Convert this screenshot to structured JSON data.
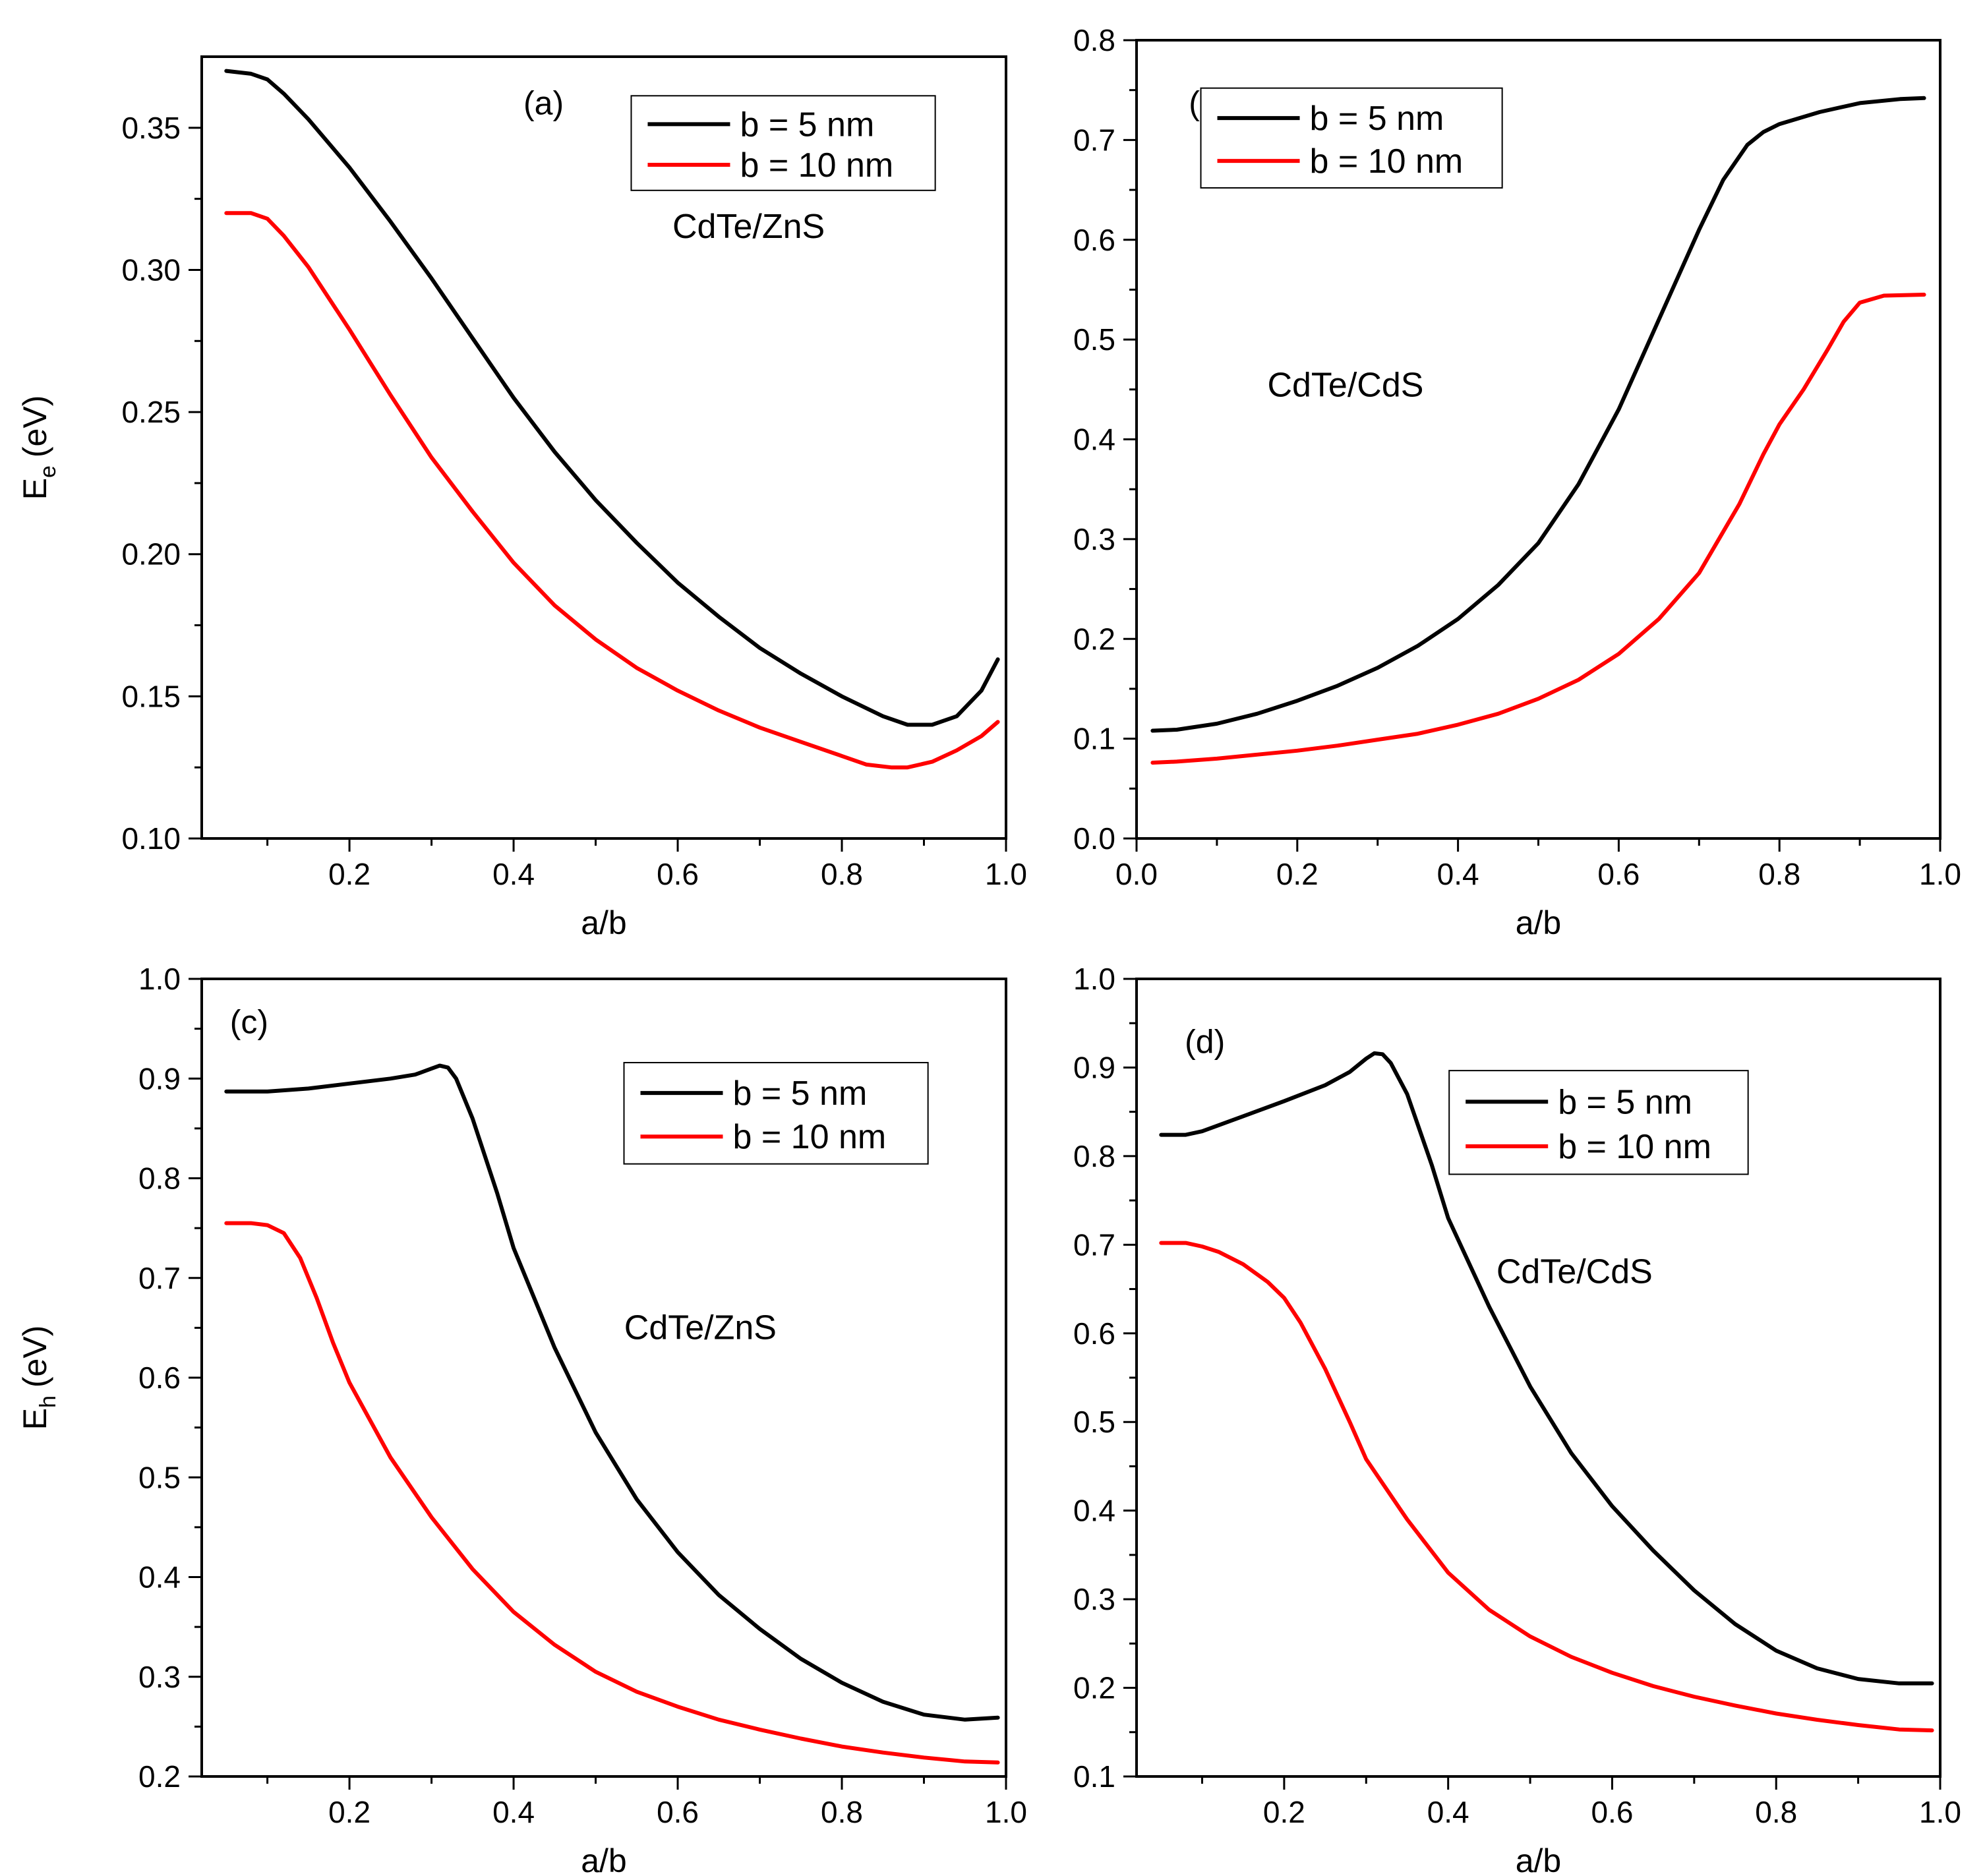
{
  "colors": {
    "b5": "#000000",
    "b10": "#ff0000"
  },
  "chart_data": [
    {
      "type": "line",
      "panel": "(a)",
      "material": "CdTe/ZnS",
      "xlabel": "a/b",
      "ylabel": "E",
      "ylabel_sub": "e",
      "ylabel_unit": "(eV)",
      "xlim": [
        0.02,
        1.0
      ],
      "ylim": [
        0.1,
        0.375
      ],
      "xticks": [
        "0.2",
        "0.4",
        "0.6",
        "0.8",
        "1.0"
      ],
      "xtick_values": [
        0.2,
        0.4,
        0.6,
        0.8,
        1.0
      ],
      "yticks": [
        "0.10",
        "0.15",
        "0.20",
        "0.25",
        "0.30",
        "0.35"
      ],
      "ytick_values": [
        0.1,
        0.15,
        0.2,
        0.25,
        0.3,
        0.35
      ],
      "legend_position": "top-right",
      "series": [
        {
          "name": "b = 5 nm",
          "color": "#000000",
          "x": [
            0.05,
            0.08,
            0.1,
            0.12,
            0.15,
            0.2,
            0.25,
            0.3,
            0.35,
            0.4,
            0.45,
            0.5,
            0.55,
            0.6,
            0.65,
            0.7,
            0.75,
            0.8,
            0.85,
            0.88,
            0.91,
            0.94,
            0.97,
            0.99
          ],
          "y": [
            0.37,
            0.369,
            0.367,
            0.362,
            0.353,
            0.336,
            0.317,
            0.297,
            0.276,
            0.255,
            0.236,
            0.219,
            0.204,
            0.19,
            0.178,
            0.167,
            0.158,
            0.15,
            0.143,
            0.14,
            0.14,
            0.143,
            0.152,
            0.163
          ]
        },
        {
          "name": "b = 10 nm",
          "color": "#ff0000",
          "x": [
            0.05,
            0.08,
            0.1,
            0.12,
            0.15,
            0.2,
            0.25,
            0.3,
            0.35,
            0.4,
            0.45,
            0.5,
            0.55,
            0.6,
            0.65,
            0.7,
            0.75,
            0.8,
            0.83,
            0.86,
            0.88,
            0.91,
            0.94,
            0.97,
            0.99
          ],
          "y": [
            0.32,
            0.32,
            0.318,
            0.312,
            0.301,
            0.279,
            0.256,
            0.234,
            0.215,
            0.197,
            0.182,
            0.17,
            0.16,
            0.152,
            0.145,
            0.139,
            0.134,
            0.129,
            0.126,
            0.125,
            0.125,
            0.127,
            0.131,
            0.136,
            0.141
          ]
        }
      ]
    },
    {
      "type": "line",
      "panel": "(b)",
      "material": "CdTe/CdS",
      "xlabel": "a/b",
      "ylabel": "",
      "ylabel_sub": "",
      "ylabel_unit": "",
      "xlim": [
        0.0,
        1.0
      ],
      "ylim": [
        0.0,
        0.8
      ],
      "xticks": [
        "0.0",
        "0.2",
        "0.4",
        "0.6",
        "0.8",
        "1.0"
      ],
      "xtick_values": [
        0.0,
        0.2,
        0.4,
        0.6,
        0.8,
        1.0
      ],
      "yticks": [
        "0.0",
        "0.1",
        "0.2",
        "0.3",
        "0.4",
        "0.5",
        "0.6",
        "0.7",
        "0.8"
      ],
      "ytick_values": [
        0.0,
        0.1,
        0.2,
        0.3,
        0.4,
        0.5,
        0.6,
        0.7,
        0.8
      ],
      "legend_position": "top-left",
      "series": [
        {
          "name": "b = 5 nm",
          "color": "#000000",
          "x": [
            0.02,
            0.05,
            0.1,
            0.15,
            0.2,
            0.25,
            0.3,
            0.35,
            0.4,
            0.45,
            0.5,
            0.55,
            0.6,
            0.65,
            0.7,
            0.73,
            0.76,
            0.78,
            0.8,
            0.85,
            0.9,
            0.95,
            0.98
          ],
          "y": [
            0.108,
            0.109,
            0.115,
            0.125,
            0.138,
            0.153,
            0.171,
            0.193,
            0.22,
            0.254,
            0.296,
            0.355,
            0.43,
            0.52,
            0.61,
            0.66,
            0.695,
            0.708,
            0.716,
            0.728,
            0.737,
            0.741,
            0.742
          ]
        },
        {
          "name": "b = 10 nm",
          "color": "#ff0000",
          "x": [
            0.02,
            0.05,
            0.1,
            0.15,
            0.2,
            0.25,
            0.3,
            0.35,
            0.4,
            0.45,
            0.5,
            0.55,
            0.6,
            0.65,
            0.7,
            0.75,
            0.78,
            0.8,
            0.83,
            0.86,
            0.88,
            0.9,
            0.93,
            0.98
          ],
          "y": [
            0.076,
            0.077,
            0.08,
            0.084,
            0.088,
            0.093,
            0.099,
            0.105,
            0.114,
            0.125,
            0.14,
            0.159,
            0.185,
            0.22,
            0.266,
            0.335,
            0.385,
            0.415,
            0.45,
            0.49,
            0.518,
            0.537,
            0.544,
            0.545
          ]
        }
      ]
    },
    {
      "type": "line",
      "panel": "(c)",
      "material": "CdTe/ZnS",
      "xlabel": "a/b",
      "ylabel": "E",
      "ylabel_sub": "h",
      "ylabel_unit": "(eV)",
      "xlim": [
        0.02,
        1.0
      ],
      "ylim": [
        0.2,
        1.0
      ],
      "xticks": [
        "0.2",
        "0.4",
        "0.6",
        "0.8",
        "1.0"
      ],
      "xtick_values": [
        0.2,
        0.4,
        0.6,
        0.8,
        1.0
      ],
      "yticks": [
        "0.2",
        "0.3",
        "0.4",
        "0.5",
        "0.6",
        "0.7",
        "0.8",
        "0.9",
        "1.0"
      ],
      "ytick_values": [
        0.2,
        0.3,
        0.4,
        0.5,
        0.6,
        0.7,
        0.8,
        0.9,
        1.0
      ],
      "legend_position": "top-right",
      "series": [
        {
          "name": "b = 5 nm",
          "color": "#000000",
          "x": [
            0.05,
            0.1,
            0.15,
            0.2,
            0.25,
            0.28,
            0.3,
            0.31,
            0.32,
            0.33,
            0.35,
            0.38,
            0.4,
            0.45,
            0.5,
            0.55,
            0.6,
            0.65,
            0.7,
            0.75,
            0.8,
            0.85,
            0.9,
            0.95,
            0.99
          ],
          "y": [
            0.887,
            0.887,
            0.89,
            0.895,
            0.9,
            0.904,
            0.91,
            0.913,
            0.911,
            0.9,
            0.86,
            0.785,
            0.73,
            0.63,
            0.545,
            0.478,
            0.425,
            0.382,
            0.348,
            0.318,
            0.294,
            0.275,
            0.262,
            0.257,
            0.259
          ]
        },
        {
          "name": "b = 10 nm",
          "color": "#ff0000",
          "x": [
            0.05,
            0.08,
            0.1,
            0.12,
            0.14,
            0.16,
            0.18,
            0.2,
            0.25,
            0.3,
            0.35,
            0.4,
            0.45,
            0.5,
            0.55,
            0.6,
            0.65,
            0.7,
            0.75,
            0.8,
            0.85,
            0.9,
            0.95,
            0.99
          ],
          "y": [
            0.755,
            0.755,
            0.753,
            0.745,
            0.72,
            0.68,
            0.635,
            0.595,
            0.52,
            0.46,
            0.408,
            0.365,
            0.332,
            0.305,
            0.285,
            0.27,
            0.257,
            0.247,
            0.238,
            0.23,
            0.224,
            0.219,
            0.215,
            0.214
          ]
        }
      ]
    },
    {
      "type": "line",
      "panel": "(d)",
      "material": "CdTe/CdS",
      "xlabel": "a/b",
      "ylabel": "",
      "ylabel_sub": "",
      "ylabel_unit": "",
      "xlim": [
        0.02,
        1.0
      ],
      "ylim": [
        0.1,
        1.0
      ],
      "xticks": [
        "0.2",
        "0.4",
        "0.6",
        "0.8",
        "1.0"
      ],
      "xtick_values": [
        0.2,
        0.4,
        0.6,
        0.8,
        1.0
      ],
      "yticks": [
        "0.1",
        "0.2",
        "0.3",
        "0.4",
        "0.5",
        "0.6",
        "0.7",
        "0.8",
        "0.9",
        "1.0"
      ],
      "ytick_values": [
        0.1,
        0.2,
        0.3,
        0.4,
        0.5,
        0.6,
        0.7,
        0.8,
        0.9,
        1.0
      ],
      "legend_position": "top-right",
      "series": [
        {
          "name": "b = 5 nm",
          "color": "#000000",
          "x": [
            0.05,
            0.08,
            0.1,
            0.15,
            0.2,
            0.25,
            0.28,
            0.3,
            0.31,
            0.32,
            0.33,
            0.35,
            0.38,
            0.4,
            0.45,
            0.5,
            0.55,
            0.6,
            0.65,
            0.7,
            0.75,
            0.8,
            0.85,
            0.9,
            0.95,
            0.99
          ],
          "y": [
            0.824,
            0.824,
            0.828,
            0.845,
            0.862,
            0.88,
            0.895,
            0.91,
            0.916,
            0.915,
            0.905,
            0.87,
            0.79,
            0.73,
            0.63,
            0.54,
            0.465,
            0.405,
            0.355,
            0.31,
            0.272,
            0.242,
            0.222,
            0.21,
            0.205,
            0.205
          ]
        },
        {
          "name": "b = 10 nm",
          "color": "#ff0000",
          "x": [
            0.05,
            0.08,
            0.1,
            0.12,
            0.15,
            0.18,
            0.2,
            0.22,
            0.25,
            0.28,
            0.3,
            0.35,
            0.4,
            0.45,
            0.5,
            0.55,
            0.6,
            0.65,
            0.7,
            0.75,
            0.8,
            0.85,
            0.9,
            0.95,
            0.99
          ],
          "y": [
            0.702,
            0.702,
            0.698,
            0.692,
            0.678,
            0.658,
            0.64,
            0.612,
            0.56,
            0.5,
            0.458,
            0.39,
            0.33,
            0.288,
            0.258,
            0.235,
            0.217,
            0.202,
            0.19,
            0.18,
            0.171,
            0.164,
            0.158,
            0.153,
            0.152
          ]
        }
      ]
    }
  ]
}
